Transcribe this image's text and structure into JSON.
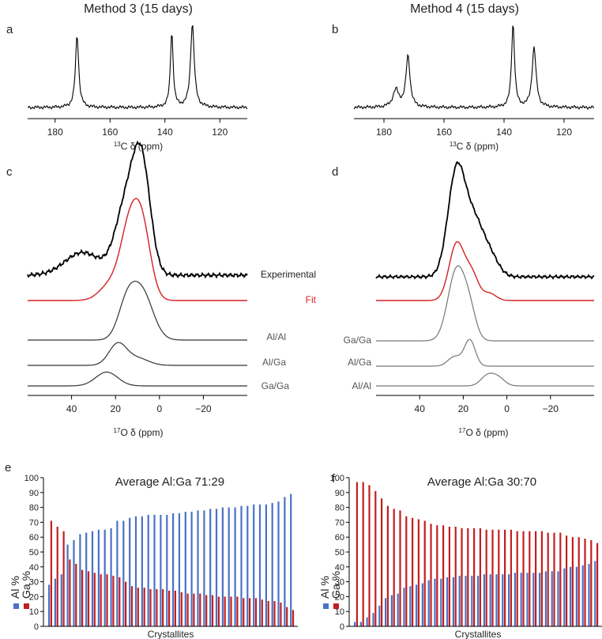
{
  "chart_data": [
    {
      "panel": "a",
      "type": "line",
      "title": "Method 3 (15 days)",
      "xlabel_sup": "13",
      "xlabel_main": "C δ (ppm)",
      "x_range": [
        190,
        110
      ],
      "x_ticks": [
        180,
        160,
        140,
        120
      ],
      "peaks": [
        {
          "ppm": 172,
          "intensity": 0.85,
          "width": 0.7
        },
        {
          "ppm": 137.5,
          "intensity": 0.88,
          "width": 0.6
        },
        {
          "ppm": 130,
          "intensity": 0.98,
          "width": 0.8
        }
      ]
    },
    {
      "panel": "b",
      "type": "line",
      "title": "Method 4 (15 days)",
      "xlabel_sup": "13",
      "xlabel_main": "C δ (ppm)",
      "x_range": [
        190,
        110
      ],
      "x_ticks": [
        180,
        160,
        140,
        120
      ],
      "peaks": [
        {
          "ppm": 176,
          "intensity": 0.2,
          "width": 1.2
        },
        {
          "ppm": 172,
          "intensity": 0.6,
          "width": 0.8
        },
        {
          "ppm": 137,
          "intensity": 0.98,
          "width": 0.6
        },
        {
          "ppm": 130,
          "intensity": 0.7,
          "width": 0.8
        }
      ]
    },
    {
      "panel": "c",
      "type": "line",
      "xlabel_sup": "17",
      "xlabel_main": "O δ (ppm)",
      "x_range": [
        60,
        -40
      ],
      "x_ticks": [
        40,
        20,
        0,
        -20
      ],
      "x_tick_labels": [
        "40",
        "20",
        "0",
        "−20"
      ],
      "traces": [
        {
          "label": "Experimental",
          "color": "#000000",
          "peaks": [
            [
              8,
              0.8,
              4
            ],
            [
              15,
              0.55,
              5
            ],
            [
              35,
              0.18,
              8
            ]
          ]
        },
        {
          "label": "Fit",
          "color": "#d62020",
          "peaks": [
            [
              8,
              0.65,
              4
            ],
            [
              14,
              0.55,
              4
            ],
            [
              22,
              0.15,
              5
            ]
          ]
        },
        {
          "label": "Al/Al",
          "color": "#333333",
          "peaks": [
            [
              8,
              0.6,
              5
            ],
            [
              15,
              0.4,
              4
            ]
          ]
        },
        {
          "label": "Al/Ga",
          "color": "#333333",
          "peaks": [
            [
              19,
              0.45,
              4
            ],
            [
              10,
              0.15,
              5
            ]
          ]
        },
        {
          "label": "Ga/Ga",
          "color": "#333333",
          "peaks": [
            [
              24,
              0.35,
              5
            ]
          ]
        }
      ]
    },
    {
      "panel": "d",
      "type": "line",
      "xlabel_sup": "17",
      "xlabel_main": "O δ (ppm)",
      "x_range": [
        60,
        -40
      ],
      "x_ticks": [
        40,
        20,
        0,
        -20
      ],
      "x_tick_labels": [
        "40",
        "20",
        "0",
        "−20"
      ],
      "traces": [
        {
          "label": "",
          "color": "#000000",
          "peaks": [
            [
              23,
              1.0,
              4
            ],
            [
              15,
              0.45,
              4
            ],
            [
              8,
              0.2,
              4
            ]
          ]
        },
        {
          "label": "",
          "color": "#d62020",
          "peaks": [
            [
              23,
              0.8,
              3.5
            ],
            [
              16,
              0.35,
              3
            ],
            [
              8,
              0.1,
              3
            ]
          ]
        },
        {
          "label": "Ga/Ga",
          "color": "#777777",
          "peaks": [
            [
              23,
              0.9,
              4
            ],
            [
              17,
              0.3,
              3
            ]
          ]
        },
        {
          "label": "Al/Ga",
          "color": "#777777",
          "peaks": [
            [
              17,
              0.55,
              2.5
            ],
            [
              24,
              0.2,
              3
            ]
          ]
        },
        {
          "label": "Al/Al",
          "color": "#777777",
          "peaks": [
            [
              9,
              0.25,
              3
            ],
            [
              4,
              0.2,
              3
            ]
          ]
        }
      ]
    },
    {
      "panel": "e",
      "type": "bar",
      "title": "Average Al:Ga 71:29",
      "xlabel": "Crystallites",
      "ylabel_al": "Al %",
      "ylabel_ga": "Ga %",
      "ylim": [
        0,
        100
      ],
      "y_ticks": [
        0,
        10,
        20,
        30,
        40,
        50,
        60,
        70,
        80,
        90,
        100
      ],
      "series": [
        {
          "name": "Al %",
          "color": "#4a72c4",
          "values": [
            28,
            32,
            35,
            55,
            58,
            62,
            63,
            64,
            65,
            65,
            66,
            71,
            71,
            73,
            74,
            74,
            75,
            75,
            75,
            75,
            76,
            76,
            77,
            77,
            78,
            78,
            79,
            79,
            80,
            80,
            80,
            81,
            81,
            82,
            82,
            82,
            83,
            84,
            87,
            89
          ]
        },
        {
          "name": "Ga %",
          "color": "#c21f1f",
          "values": [
            71,
            67,
            64,
            45,
            42,
            38,
            37,
            36,
            35,
            35,
            34,
            33,
            30,
            27,
            26,
            26,
            25,
            25,
            25,
            24,
            24,
            23,
            22,
            22,
            22,
            21,
            21,
            20,
            20,
            20,
            20,
            19,
            19,
            19,
            18,
            17,
            17,
            16,
            13,
            11
          ]
        }
      ]
    },
    {
      "panel": "f",
      "type": "bar",
      "title": "Average Al:Ga 30:70",
      "xlabel": "Crystallites",
      "ylabel_al": "Al %",
      "ylabel_ga": "Ga %",
      "ylim": [
        0,
        100
      ],
      "y_ticks": [
        0,
        10,
        20,
        30,
        40,
        50,
        60,
        70,
        80,
        90,
        100
      ],
      "series": [
        {
          "name": "Al %",
          "color": "#4a72c4",
          "values": [
            3,
            3,
            6,
            9,
            14,
            19,
            21,
            22,
            26,
            27,
            28,
            29,
            31,
            32,
            32,
            33,
            33,
            34,
            34,
            34,
            34,
            35,
            35,
            35,
            35,
            35,
            36,
            36,
            36,
            36,
            36,
            37,
            37,
            37,
            39,
            40,
            40,
            41,
            42,
            44
          ]
        },
        {
          "name": "Ga %",
          "color": "#c21f1f",
          "values": [
            97,
            97,
            95,
            91,
            86,
            81,
            79,
            78,
            74,
            73,
            72,
            71,
            69,
            68,
            68,
            67,
            67,
            66,
            66,
            66,
            66,
            65,
            65,
            65,
            65,
            65,
            64,
            64,
            64,
            64,
            64,
            63,
            63,
            63,
            61,
            60,
            60,
            59,
            58,
            56
          ]
        }
      ]
    }
  ]
}
